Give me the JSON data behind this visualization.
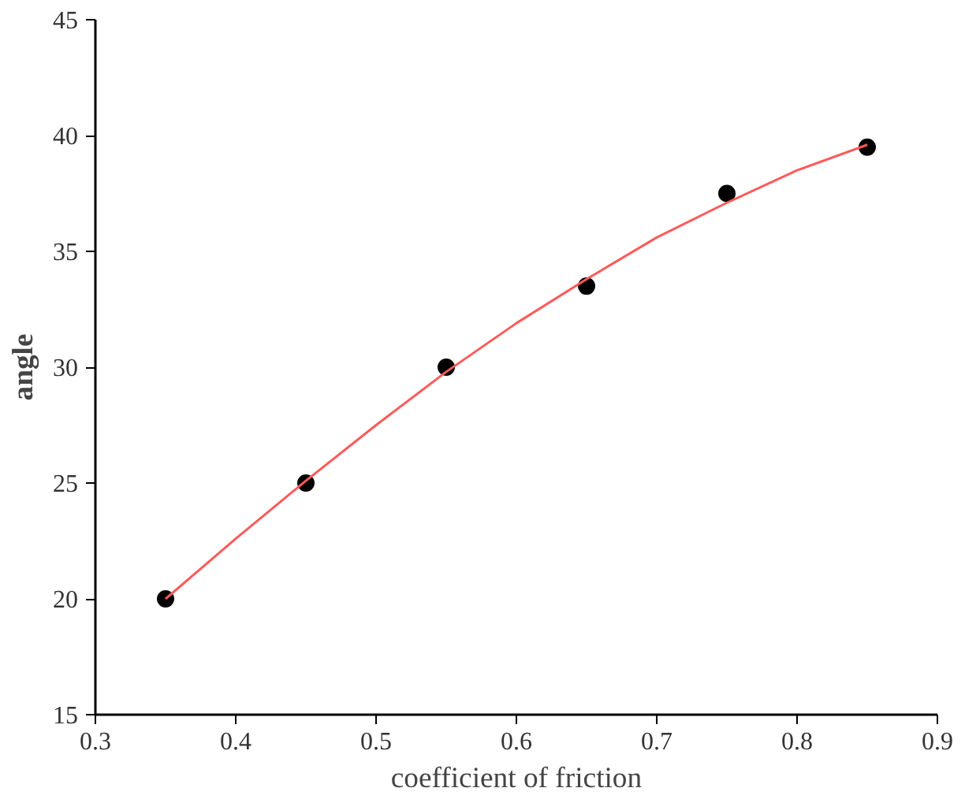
{
  "chart_data": {
    "type": "scatter",
    "xlabel": "coefficient of friction",
    "ylabel": "angle",
    "x": [
      0.35,
      0.45,
      0.55,
      0.65,
      0.75,
      0.85
    ],
    "series": [
      {
        "color": "#000000",
        "marker": "circle",
        "values": [
          20,
          25,
          30,
          33.5,
          37.5,
          39.5
        ]
      },
      {
        "type": "line",
        "color": "#ff5a5a",
        "x": [
          0.35,
          0.4,
          0.45,
          0.5,
          0.55,
          0.6,
          0.65,
          0.7,
          0.75,
          0.8,
          0.85
        ],
        "values": [
          20.0,
          22.6,
          25.1,
          27.5,
          29.8,
          31.9,
          33.8,
          35.6,
          37.1,
          38.5,
          39.6
        ]
      }
    ],
    "xlim": [
      0.3,
      0.9
    ],
    "xticks": [
      0.3,
      0.4,
      0.5,
      0.6,
      0.7,
      0.8,
      0.9
    ],
    "ylim": [
      15,
      45
    ],
    "yticks": [
      15,
      20,
      25,
      30,
      35,
      40,
      45
    ],
    "grid": false
  }
}
